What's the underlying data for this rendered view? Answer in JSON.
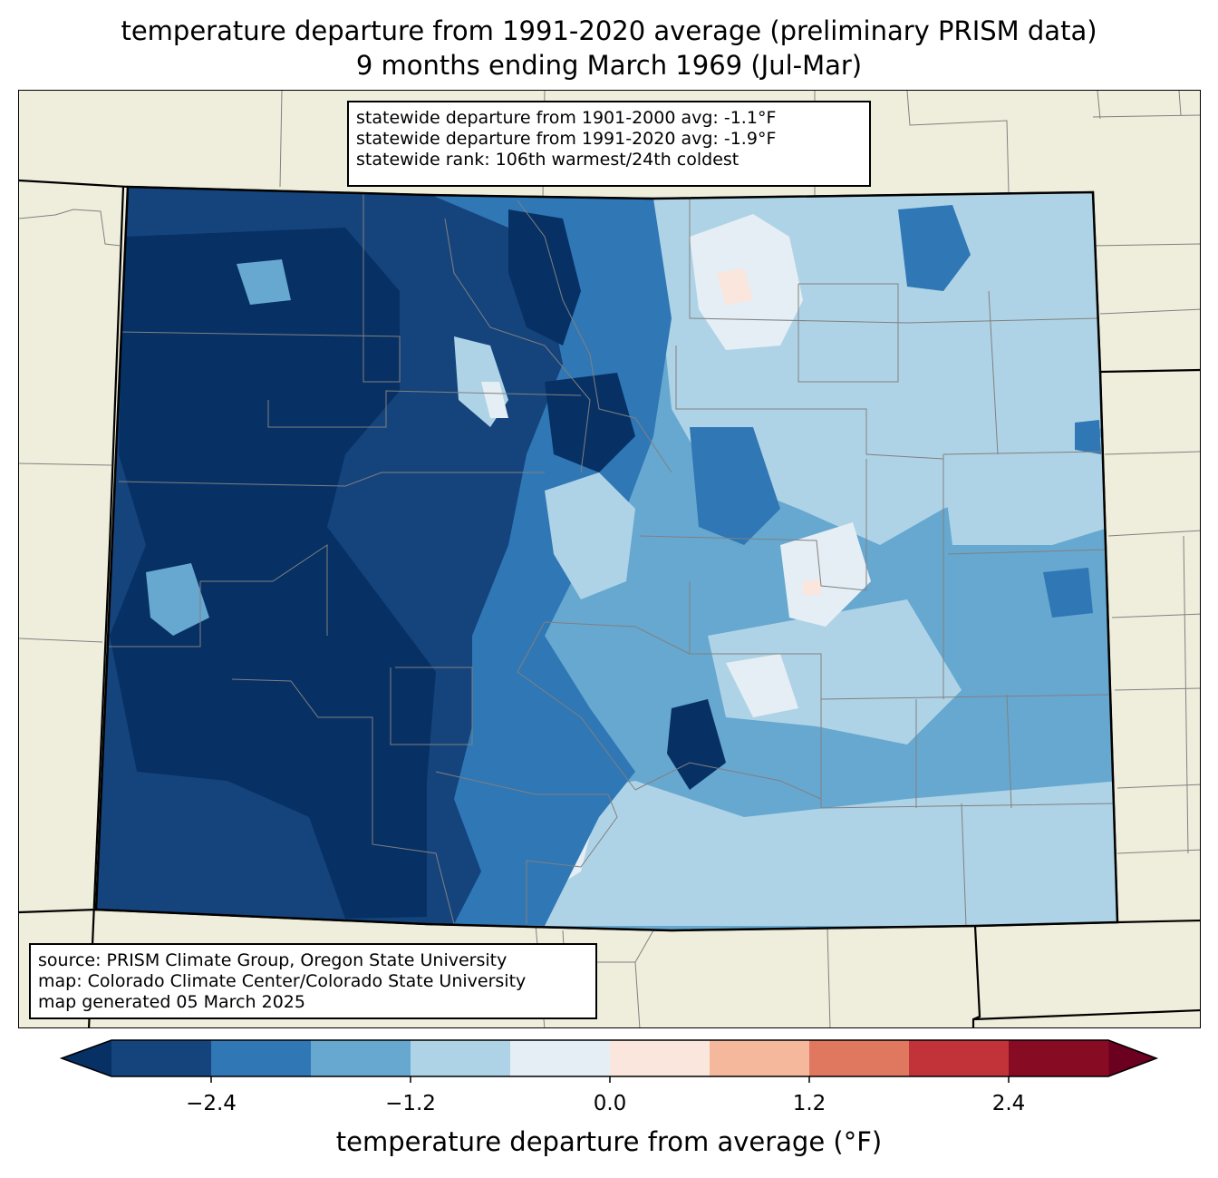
{
  "title": {
    "line1": "temperature departure from 1991-2020 average (preliminary PRISM data)",
    "line2": "9 months ending March 1969 (Jul-Mar)"
  },
  "stats_box": {
    "line1": "statewide departure from 1901-2000 avg: -1.1°F",
    "line2": "statewide departure from 1991-2020 avg: -1.9°F",
    "line3": "statewide rank: 106th warmest/24th coldest"
  },
  "source_box": {
    "line1": "source: PRISM Climate Group, Oregon State University",
    "line2": "map: Colorado Climate Center/Colorado State University",
    "line3": "map generated 05 March 2025"
  },
  "colorbar": {
    "label": "temperature departure from average (°F)",
    "ticks": [
      "−2.4",
      "−1.2",
      "0.0",
      "1.2",
      "2.4"
    ],
    "tick_values": [
      -2.4,
      -1.2,
      0.0,
      1.2,
      2.4
    ],
    "bounds": [
      -3.0,
      -2.4,
      -1.8,
      -1.2,
      -0.6,
      0.0,
      0.6,
      1.2,
      1.8,
      2.4,
      3.0
    ],
    "colors": [
      "#15447d",
      "#2f77b5",
      "#67a8d0",
      "#afd3e6",
      "#e5eef4",
      "#fae6dc",
      "#f6b89c",
      "#e0775f",
      "#c13338",
      "#860b23"
    ],
    "under_color": "#073064",
    "over_color": "#6b0020"
  },
  "colors": {
    "land": "#efeedc",
    "state_border": "#000000",
    "county_border": "#808080"
  }
}
